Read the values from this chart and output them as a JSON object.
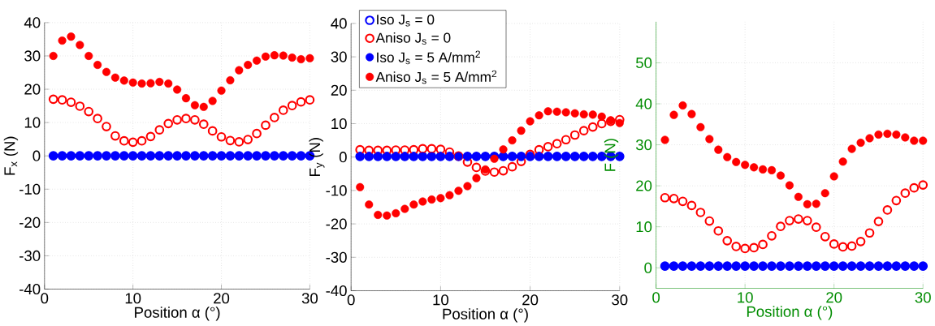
{
  "chart_data": [
    {
      "type": "scatter",
      "xlabel": "Position α (°)",
      "ylabel": "F$_{x}$ (N)",
      "x": [
        1,
        2,
        3,
        4,
        5,
        6,
        7,
        8,
        9,
        10,
        11,
        12,
        13,
        14,
        15,
        16,
        17,
        18,
        19,
        20,
        21,
        22,
        23,
        24,
        25,
        26,
        27,
        28,
        29,
        30
      ],
      "xlim": [
        0,
        30
      ],
      "xticks": [
        0,
        10,
        20,
        30
      ],
      "ylim": [
        -40,
        40
      ],
      "yticks": [
        -40,
        -30,
        -20,
        -10,
        0,
        10,
        20,
        30,
        40
      ],
      "grid": true,
      "marker": "circle",
      "legend": false,
      "series": [
        {
          "color": "#0000ff",
          "values": [
            0,
            0,
            0,
            0,
            0,
            0,
            0,
            0,
            0,
            0,
            0,
            0,
            0,
            0,
            0,
            0,
            0,
            0,
            0,
            0,
            0,
            0,
            0,
            0,
            0,
            0,
            0,
            0,
            0,
            0
          ]
        },
        {
          "color": "#ff0000",
          "values": [
            17,
            16.8,
            16.1,
            14.9,
            13.3,
            11.2,
            8.8,
            6,
            4.5,
            4.1,
            4.5,
            5.8,
            7.8,
            9.7,
            10.8,
            11.2,
            10.8,
            9.5,
            7.5,
            5.7,
            4.6,
            4.2,
            4.9,
            6.7,
            9.2,
            11.5,
            13.7,
            15.1,
            16.2,
            16.8
          ]
        },
        {
          "color": "#0000ff",
          "values": [
            0,
            0,
            0,
            0,
            0,
            0,
            0,
            0,
            0,
            0,
            0,
            0,
            0,
            0,
            0,
            0,
            0,
            0,
            0,
            0,
            0,
            0,
            0,
            0,
            0,
            0,
            0,
            0,
            0,
            0
          ]
        },
        {
          "color": "#ff0000",
          "values": [
            30,
            34.6,
            35.8,
            33.3,
            30,
            27.3,
            25.2,
            23.5,
            22.6,
            22,
            21.7,
            21.8,
            22.2,
            21.7,
            19.9,
            17.3,
            15.2,
            14.7,
            16.5,
            19.6,
            22.7,
            25.7,
            27.3,
            28.6,
            29.8,
            30.2,
            30.1,
            29.5,
            29,
            29.3
          ]
        }
      ]
    },
    {
      "type": "scatter",
      "xlabel": "Position α (°)",
      "ylabel": "F$_{y}$ (N)",
      "x": [
        1,
        2,
        3,
        4,
        5,
        6,
        7,
        8,
        9,
        10,
        11,
        12,
        13,
        14,
        15,
        16,
        17,
        18,
        19,
        20,
        21,
        22,
        23,
        24,
        25,
        26,
        27,
        28,
        29,
        30
      ],
      "xlim": [
        0,
        30
      ],
      "xticks": [
        0,
        10,
        20,
        30
      ],
      "ylim": [
        -40,
        40
      ],
      "yticks": [
        -40,
        -30,
        -20,
        -10,
        0,
        10,
        20,
        30,
        40
      ],
      "grid": true,
      "marker": "circle",
      "legend": "top left",
      "series": [
        {
          "name": "Iso J$_{s}$ = 0",
          "color": "#0000ff",
          "values": [
            0.2,
            0.2,
            0.2,
            0.2,
            0.2,
            0.2,
            0.2,
            0.2,
            0.2,
            0.2,
            0.2,
            0.2,
            0.2,
            0.2,
            0.2,
            0.2,
            0.2,
            0.2,
            0.2,
            0.2,
            0.2,
            0.2,
            0.2,
            0.2,
            0.2,
            0.2,
            0.2,
            0.2,
            0.2,
            0.2
          ]
        },
        {
          "name": "Aniso J$_{s}$ = 0",
          "color": "#ff0000",
          "values": [
            2.2,
            2,
            2,
            2,
            2.1,
            2.1,
            2.2,
            2.5,
            2.5,
            2.3,
            1.5,
            0.3,
            -1.5,
            -3.1,
            -4.2,
            -4.5,
            -4.1,
            -2.9,
            -1.3,
            0.8,
            2.2,
            3.1,
            4,
            5.2,
            6.6,
            7.9,
            9,
            10,
            10.7,
            11.2
          ]
        },
        {
          "name": "Iso J$_{s}$ = 5 A/mm$^{2}$",
          "color": "#0000ff",
          "values": [
            0.2,
            0.2,
            0.2,
            0.2,
            0.2,
            0.2,
            0.2,
            0.2,
            0.2,
            0.2,
            0.2,
            0.2,
            0.2,
            0.2,
            0.2,
            0.2,
            0.2,
            0.2,
            0.2,
            0.2,
            0.2,
            0.2,
            0.2,
            0.2,
            0.2,
            0.2,
            0.2,
            0.2,
            0.2,
            0.2
          ]
        },
        {
          "name": "Aniso J$_{s}$ = 5 A/mm$^{2}$",
          "color": "#ff0000",
          "values": [
            -9,
            -14.2,
            -17.3,
            -17.5,
            -16.8,
            -15.5,
            -14.2,
            -13.3,
            -12.7,
            -12.3,
            -11.4,
            -10.1,
            -8.7,
            -6.3,
            -3.7,
            -0.5,
            2.3,
            5,
            7.9,
            10.7,
            12.5,
            13.7,
            13.6,
            13.4,
            13.1,
            12.8,
            12.7,
            12.1,
            11,
            10.2
          ]
        }
      ]
    },
    {
      "type": "scatter",
      "xlabel": "Position α (°)",
      "ylabel": "F (N)",
      "x": [
        1,
        2,
        3,
        4,
        5,
        6,
        7,
        8,
        9,
        10,
        11,
        12,
        13,
        14,
        15,
        16,
        17,
        18,
        19,
        20,
        21,
        22,
        23,
        24,
        25,
        26,
        27,
        28,
        29,
        30
      ],
      "xlim": [
        0,
        30
      ],
      "xticks": [
        0,
        10,
        20,
        30
      ],
      "ylim": [
        -5,
        60
      ],
      "yticks": [
        0,
        10,
        20,
        30,
        40,
        50
      ],
      "grid": true,
      "marker": "circle",
      "legend": false,
      "series": [
        {
          "color": "#0000ff",
          "values": [
            0.4,
            0.4,
            0.4,
            0.4,
            0.4,
            0.4,
            0.4,
            0.4,
            0.4,
            0.4,
            0.4,
            0.4,
            0.4,
            0.4,
            0.4,
            0.4,
            0.4,
            0.4,
            0.4,
            0.4,
            0.4,
            0.4,
            0.4,
            0.4,
            0.4,
            0.4,
            0.4,
            0.4,
            0.4,
            0.4
          ]
        },
        {
          "color": "#ff0000",
          "values": [
            17.1,
            16.9,
            16.2,
            15.2,
            13.5,
            11.4,
            9,
            6.6,
            5.2,
            4.7,
            4.9,
            5.7,
            7.8,
            10.1,
            11.5,
            11.9,
            11.5,
            9.9,
            7.6,
            5.8,
            5.1,
            5.3,
            6.4,
            8.5,
            11.3,
            14.1,
            16.4,
            18.2,
            19.5,
            20.2
          ]
        },
        {
          "color": "#0000ff",
          "values": [
            0.4,
            0.4,
            0.4,
            0.4,
            0.4,
            0.4,
            0.4,
            0.4,
            0.4,
            0.4,
            0.4,
            0.4,
            0.4,
            0.4,
            0.4,
            0.4,
            0.4,
            0.4,
            0.4,
            0.4,
            0.4,
            0.4,
            0.4,
            0.4,
            0.4,
            0.4,
            0.4,
            0.4,
            0.4,
            0.4
          ]
        },
        {
          "color": "#ff0000",
          "values": [
            31.2,
            37.3,
            39.6,
            37.5,
            34.3,
            31.4,
            28.8,
            27,
            25.8,
            25.1,
            24.5,
            24,
            23.8,
            22.5,
            20.1,
            17.3,
            15.5,
            15.6,
            18.2,
            22.3,
            25.9,
            29,
            30.5,
            31.6,
            32.5,
            32.7,
            32.5,
            31.8,
            31,
            31
          ]
        }
      ]
    }
  ]
}
